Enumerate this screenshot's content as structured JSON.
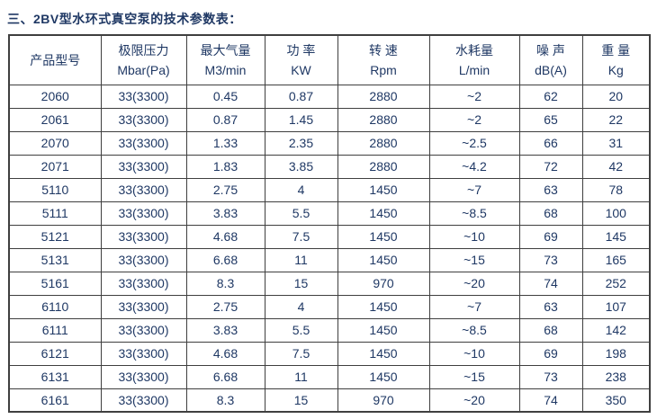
{
  "page": {
    "title": "三、2BV型水环式真空泵的技术参数表："
  },
  "colors": {
    "text": "#1f3864",
    "border": "#3f3f3f",
    "background": "#ffffff"
  },
  "table": {
    "columns": [
      {
        "name": "产品型号",
        "unit": ""
      },
      {
        "name": "极限压力",
        "unit": "Mbar(Pa)"
      },
      {
        "name": "最大气量",
        "unit": "M3/min"
      },
      {
        "name": "功 率",
        "unit": "KW"
      },
      {
        "name": "转 速",
        "unit": "Rpm"
      },
      {
        "name": "水耗量",
        "unit": "L/min"
      },
      {
        "name": "噪 声",
        "unit": "dB(A)"
      },
      {
        "name": "重 量",
        "unit": "Kg"
      }
    ],
    "rows": [
      [
        "2060",
        "33(3300)",
        "0.45",
        "0.87",
        "2880",
        "~2",
        "62",
        "20"
      ],
      [
        "2061",
        "33(3300)",
        "0.87",
        "1.45",
        "2880",
        "~2",
        "65",
        "22"
      ],
      [
        "2070",
        "33(3300)",
        "1.33",
        "2.35",
        "2880",
        "~2.5",
        "66",
        "31"
      ],
      [
        "2071",
        "33(3300)",
        "1.83",
        "3.85",
        "2880",
        "~4.2",
        "72",
        "42"
      ],
      [
        "5110",
        "33(3300)",
        "2.75",
        "4",
        "1450",
        "~7",
        "63",
        "78"
      ],
      [
        "5111",
        "33(3300)",
        "3.83",
        "5.5",
        "1450",
        "~8.5",
        "68",
        "100"
      ],
      [
        "5121",
        "33(3300)",
        "4.68",
        "7.5",
        "1450",
        "~10",
        "69",
        "145"
      ],
      [
        "5131",
        "33(3300)",
        "6.68",
        "11",
        "1450",
        "~15",
        "73",
        "165"
      ],
      [
        "5161",
        "33(3300)",
        "8.3",
        "15",
        "970",
        "~20",
        "74",
        "252"
      ],
      [
        "6110",
        "33(3300)",
        "2.75",
        "4",
        "1450",
        "~7",
        "63",
        "107"
      ],
      [
        "6111",
        "33(3300)",
        "3.83",
        "5.5",
        "1450",
        "~8.5",
        "68",
        "142"
      ],
      [
        "6121",
        "33(3300)",
        "4.68",
        "7.5",
        "1450",
        "~10",
        "69",
        "198"
      ],
      [
        "6131",
        "33(3300)",
        "6.68",
        "11",
        "1450",
        "~15",
        "73",
        "238"
      ],
      [
        "6161",
        "33(3300)",
        "8.3",
        "15",
        "970",
        "~20",
        "74",
        "350"
      ]
    ]
  }
}
